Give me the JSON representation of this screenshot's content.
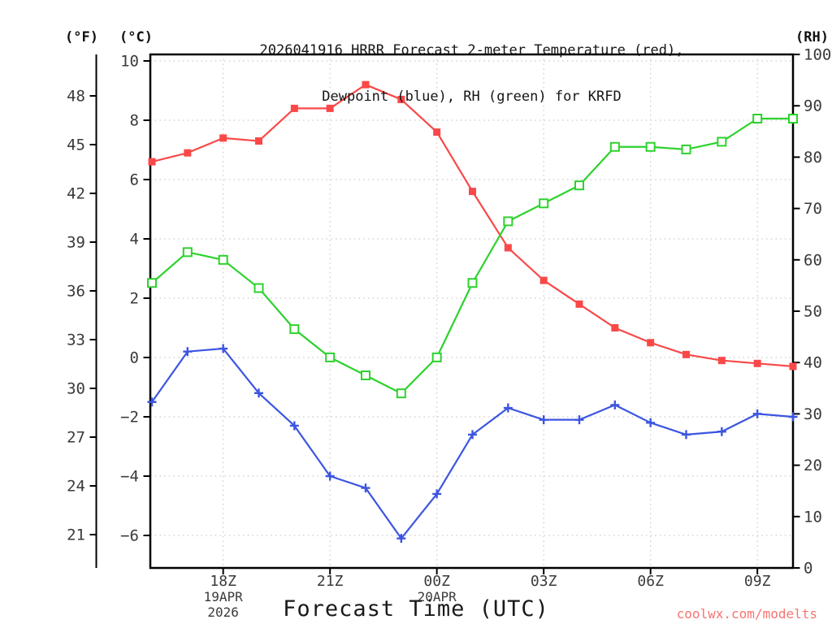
{
  "title": {
    "line1": "2026041916 HRRR Forecast 2-meter Temperature (red),",
    "line2": "Dewpoint (blue), RH (green) for KRFD"
  },
  "axis_units": {
    "fahrenheit": "(°F)",
    "celsius": "(°C)",
    "rh": "(RH)"
  },
  "x_axis": {
    "label": "Forecast Time (UTC)",
    "ticks": [
      {
        "hour": 2,
        "label": "18Z"
      },
      {
        "hour": 5,
        "label": "21Z"
      },
      {
        "hour": 8,
        "label": "00Z"
      },
      {
        "hour": 11,
        "label": "03Z"
      },
      {
        "hour": 14,
        "label": "06Z"
      },
      {
        "hour": 17,
        "label": "09Z"
      }
    ],
    "date_annotations": [
      {
        "hour": 2,
        "lines": [
          "19APR",
          "2026"
        ]
      },
      {
        "hour": 8,
        "lines": [
          "20APR"
        ]
      }
    ]
  },
  "y_axes": {
    "celsius_ticks": [
      10,
      8,
      6,
      4,
      2,
      0,
      -2,
      -4,
      -6
    ],
    "fahrenheit_ticks": [
      48,
      45,
      42,
      39,
      36,
      33,
      30,
      27,
      24,
      21
    ],
    "rh_ticks": [
      100,
      90,
      80,
      70,
      60,
      50,
      40,
      30,
      20,
      10,
      0
    ]
  },
  "watermark": "coolwx.com/modelts",
  "colors": {
    "temperature": "#fa4848",
    "dewpoint": "#3c55e1",
    "rh": "#2dd22d",
    "grid": "#c9c9c9",
    "axis": "#000000",
    "tick_text": "#3a3a3a",
    "watermark": "#f87272"
  },
  "chart_data": {
    "type": "line",
    "station": "KRFD",
    "model_run": "2026041916 HRRR",
    "grid": "dotted",
    "x_hours_utc": [
      "16Z",
      "17Z",
      "18Z",
      "19Z",
      "20Z",
      "21Z",
      "22Z",
      "23Z",
      "00Z",
      "01Z",
      "02Z",
      "03Z",
      "04Z",
      "05Z",
      "06Z",
      "07Z",
      "08Z",
      "09Z",
      "10Z"
    ],
    "celsius_axis_range_at_plot_edges": [
      -7.1,
      10.2
    ],
    "rh_axis_range": [
      0,
      100
    ],
    "series": [
      {
        "id": "temperature",
        "name": "2-meter Temperature",
        "unit": "°C",
        "axis": "celsius",
        "marker": "filled-square",
        "color": "#fa4848",
        "values": [
          6.6,
          6.9,
          7.4,
          7.3,
          8.4,
          8.4,
          9.2,
          8.7,
          7.6,
          5.6,
          3.7,
          2.6,
          1.8,
          1.0,
          0.5,
          0.1,
          -0.1,
          -0.2,
          -0.3
        ]
      },
      {
        "id": "dewpoint",
        "name": "Dewpoint",
        "unit": "°C",
        "axis": "celsius",
        "marker": "plus",
        "color": "#3c55e1",
        "values": [
          -1.5,
          0.2,
          0.3,
          -1.2,
          -2.3,
          -4.0,
          -4.4,
          -6.1,
          -4.6,
          -2.6,
          -1.7,
          -2.1,
          -2.1,
          -1.6,
          -2.2,
          -2.6,
          -2.5,
          -1.9,
          -2.0
        ]
      },
      {
        "id": "rh",
        "name": "Relative Humidity",
        "unit": "%",
        "axis": "rh",
        "marker": "open-square",
        "color": "#2dd22d",
        "values": [
          55.5,
          61.5,
          60,
          54.5,
          46.5,
          41,
          37.5,
          34,
          41,
          55.5,
          67.5,
          71,
          74.5,
          82,
          82,
          81.5,
          83,
          87.5,
          87.5
        ]
      }
    ]
  }
}
